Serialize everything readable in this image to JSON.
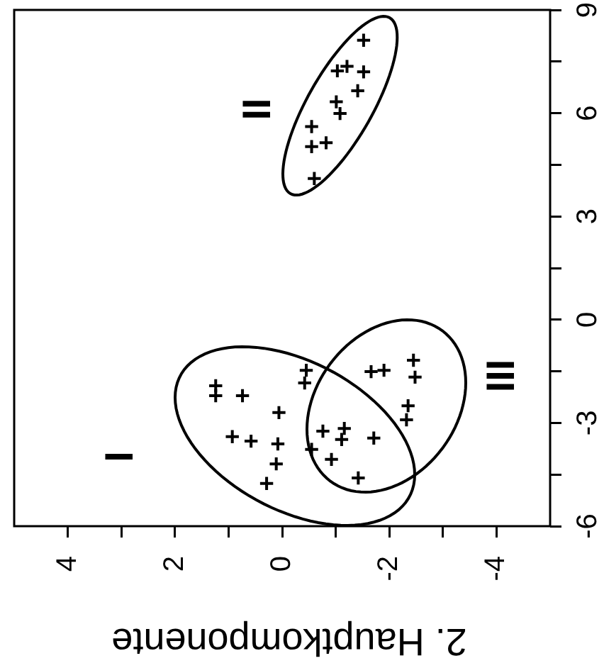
{
  "chart_data": {
    "type": "scatter",
    "xlabel": "2. Hauptkomponente",
    "marker": "cross",
    "color": "#000000",
    "xlim": [
      5,
      -5
    ],
    "xticks": [
      4,
      {
        "value": 3,
        "label": null
      },
      2,
      {
        "value": 1,
        "label": null
      },
      0,
      {
        "value": -1,
        "label": null
      },
      -2,
      {
        "value": -3,
        "label": null
      },
      -4
    ],
    "ylim": [
      -6,
      9
    ],
    "yticks": [
      -6,
      {
        "value": -4.5,
        "label": null
      },
      -3,
      {
        "value": -1.5,
        "label": null
      },
      0,
      {
        "value": 1.5,
        "label": null
      },
      3,
      {
        "value": 4.5,
        "label": null
      },
      6,
      {
        "value": 7.5,
        "label": null
      },
      9
    ],
    "x": [
      -0.45,
      -0.42,
      1.24,
      1.24,
      0.74,
      0.06,
      0.93,
      0.58,
      0.08,
      0.11,
      0.29,
      -1.66,
      -1.9,
      -2.45,
      -2.48,
      -2.35,
      -2.32,
      -0.76,
      -1.16,
      -1.11,
      -1.71,
      -0.55,
      -0.92,
      -1.42,
      -1.52,
      -1.21,
      -1.03,
      -1.52,
      -1.41,
      -1.01,
      -1.08,
      -0.55,
      -0.55,
      -0.82,
      -0.6
    ],
    "values": [
      -1.47,
      -1.84,
      -1.92,
      -2.21,
      -2.21,
      -2.7,
      -3.4,
      -3.53,
      -3.61,
      -4.19,
      -4.76,
      -1.51,
      -1.47,
      -1.18,
      -1.67,
      -2.5,
      -2.91,
      -3.24,
      -3.16,
      -3.48,
      -3.44,
      -3.77,
      -4.06,
      -4.6,
      8.12,
      7.36,
      7.23,
      7.2,
      6.65,
      6.33,
      5.99,
      5.61,
      5.03,
      5.14,
      4.1
    ],
    "annotations": [
      "I",
      "II",
      "III"
    ]
  }
}
